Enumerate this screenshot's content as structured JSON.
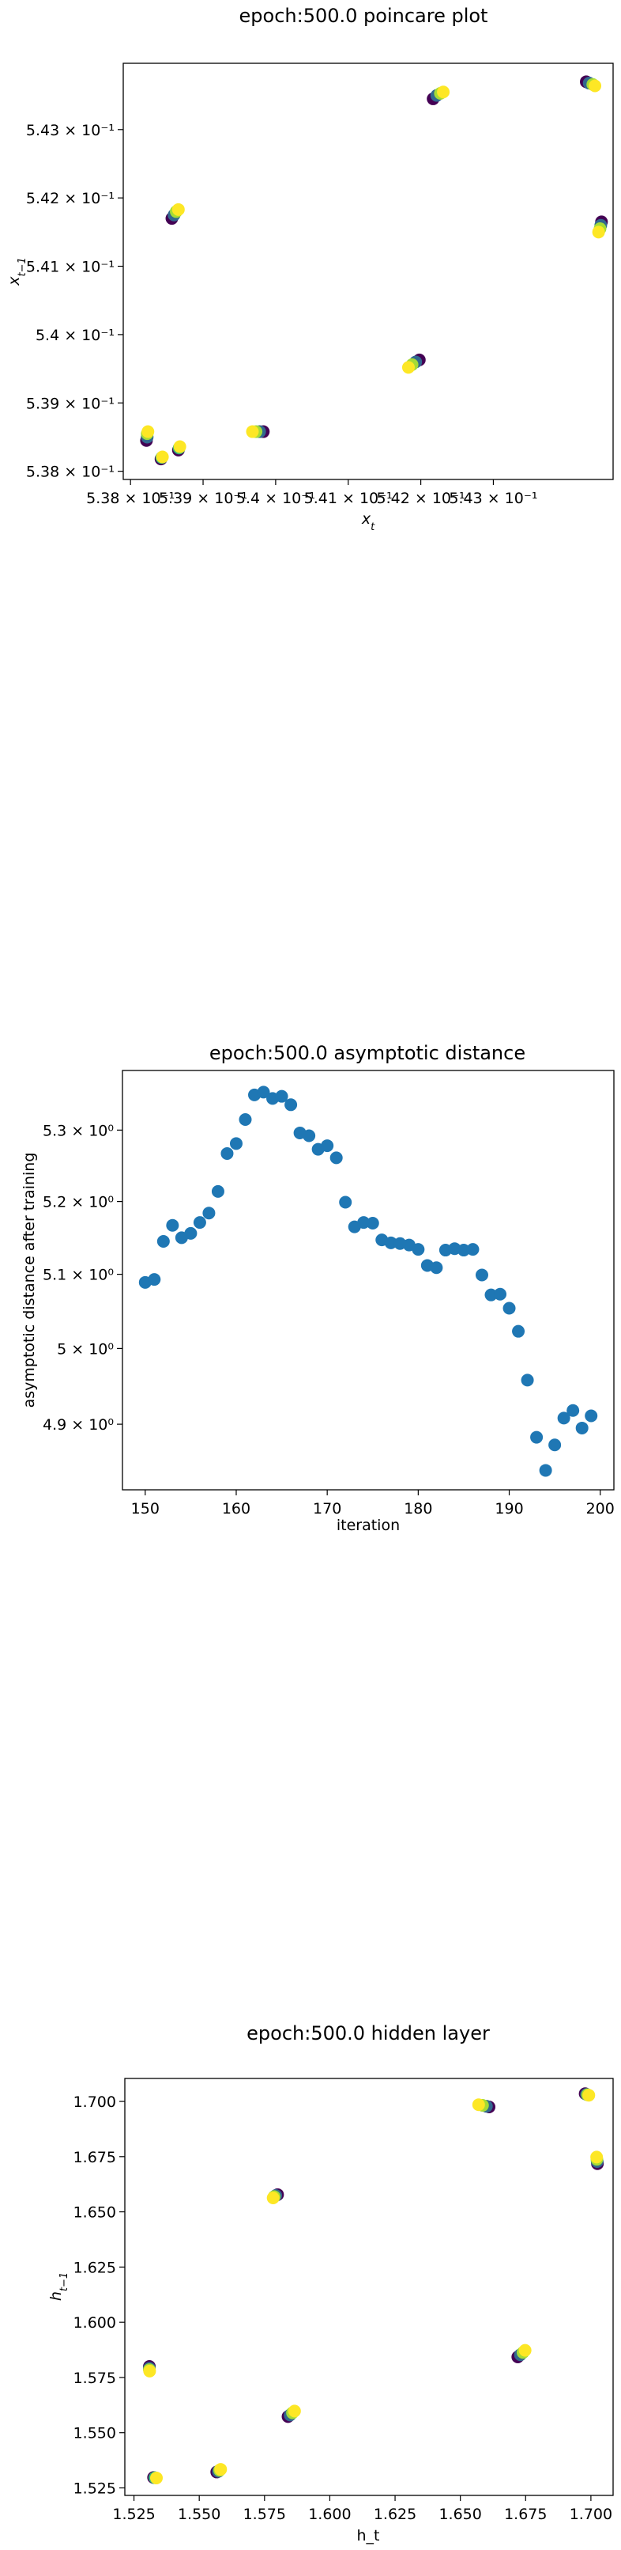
{
  "chart_data": [
    {
      "type": "scatter",
      "title": "epoch:500.0 poincare plot",
      "xlabel": "x_t",
      "ylabel": "x_{t-1}",
      "xlim": [
        0.5379,
        0.54465
      ],
      "ylim": [
        0.53788,
        0.54397
      ],
      "xticks": [
        {
          "value": 0.538,
          "label": "5.38 × 10⁻¹"
        },
        {
          "value": 0.539,
          "label": "5.39 × 10⁻¹"
        },
        {
          "value": 0.54,
          "label": "5.4 × 10⁻¹"
        },
        {
          "value": 0.541,
          "label": "5.41 × 10⁻¹"
        },
        {
          "value": 0.542,
          "label": "5.42 × 10⁻¹"
        },
        {
          "value": 0.543,
          "label": "5.43 × 10⁻¹"
        }
      ],
      "yticks": [
        {
          "value": 0.538,
          "label": "5.38 × 10⁻¹"
        },
        {
          "value": 0.539,
          "label": "5.39 × 10⁻¹"
        },
        {
          "value": 0.54,
          "label": "5.4 × 10⁻¹"
        },
        {
          "value": 0.541,
          "label": "5.41 × 10⁻¹"
        },
        {
          "value": 0.542,
          "label": "5.42 × 10⁻¹"
        },
        {
          "value": 0.543,
          "label": "5.43 × 10⁻¹"
        }
      ],
      "color_scale": "viridis",
      "clusters": [
        {
          "points": [
            [
              0.53822,
              0.53845
            ],
            [
              0.53823,
              0.5385
            ],
            [
              0.53823,
              0.53855
            ],
            [
              0.53824,
              0.53858
            ]
          ]
        },
        {
          "points": [
            [
              0.53842,
              0.53818
            ],
            [
              0.53843,
              0.5382
            ],
            [
              0.53844,
              0.53821
            ]
          ]
        },
        {
          "points": [
            [
              0.53857,
              0.5417
            ],
            [
              0.5386,
              0.54175
            ],
            [
              0.53863,
              0.5418
            ],
            [
              0.53866,
              0.54183
            ]
          ]
        },
        {
          "points": [
            [
              0.53866,
              0.53831
            ],
            [
              0.53867,
              0.53834
            ],
            [
              0.53868,
              0.53836
            ]
          ]
        },
        {
          "points": [
            [
              0.53983,
              0.53858
            ],
            [
              0.53978,
              0.53858
            ],
            [
              0.53973,
              0.53858
            ],
            [
              0.53968,
              0.53858
            ]
          ]
        },
        {
          "points": [
            [
              0.54198,
              0.53963
            ],
            [
              0.54193,
              0.5396
            ],
            [
              0.54188,
              0.53956
            ],
            [
              0.54183,
              0.53952
            ]
          ]
        },
        {
          "points": [
            [
              0.54217,
              0.54345
            ],
            [
              0.54222,
              0.5435
            ],
            [
              0.54227,
              0.54353
            ],
            [
              0.54231,
              0.54355
            ]
          ]
        },
        {
          "points": [
            [
              0.54428,
              0.5437
            ],
            [
              0.54432,
              0.54368
            ],
            [
              0.54437,
              0.54366
            ],
            [
              0.5444,
              0.54364
            ]
          ]
        },
        {
          "points": [
            [
              0.54449,
              0.54165
            ],
            [
              0.54448,
              0.5416
            ],
            [
              0.54447,
              0.54155
            ],
            [
              0.54445,
              0.5415
            ]
          ]
        }
      ]
    },
    {
      "type": "scatter",
      "title": "epoch:500.0 asymptotic distance",
      "xlabel": "iteration",
      "ylabel": "asymptotic distance after training",
      "xlim": [
        147.5,
        201.5
      ],
      "ylim": [
        4.815,
        5.385
      ],
      "log_scale_y": true,
      "color": "#1f77b4",
      "xticks": [
        {
          "value": 150,
          "label": "150"
        },
        {
          "value": 160,
          "label": "160"
        },
        {
          "value": 170,
          "label": "170"
        },
        {
          "value": 180,
          "label": "180"
        },
        {
          "value": 190,
          "label": "190"
        },
        {
          "value": 200,
          "label": "200"
        }
      ],
      "yticks": [
        {
          "value": 4.9,
          "label": "4.9 × 10⁰"
        },
        {
          "value": 5.0,
          "label": "5 × 10⁰"
        },
        {
          "value": 5.1,
          "label": "5.1 × 10⁰"
        },
        {
          "value": 5.2,
          "label": "5.2 × 10⁰"
        },
        {
          "value": 5.3,
          "label": "5.3 × 10⁰"
        }
      ],
      "x": [
        150,
        151,
        152,
        153,
        154,
        155,
        156,
        157,
        158,
        159,
        160,
        161,
        162,
        163,
        164,
        165,
        166,
        167,
        168,
        169,
        170,
        171,
        172,
        173,
        174,
        175,
        176,
        177,
        178,
        179,
        180,
        181,
        182,
        183,
        184,
        185,
        186,
        187,
        188,
        189,
        190,
        191,
        192,
        193,
        194,
        195,
        196,
        197,
        198,
        199
      ],
      "y": [
        5.089,
        5.093,
        5.145,
        5.167,
        5.15,
        5.156,
        5.171,
        5.184,
        5.214,
        5.267,
        5.281,
        5.315,
        5.35,
        5.354,
        5.345,
        5.348,
        5.336,
        5.296,
        5.292,
        5.273,
        5.278,
        5.261,
        5.199,
        5.165,
        5.171,
        5.17,
        5.147,
        5.143,
        5.142,
        5.14,
        5.134,
        5.112,
        5.109,
        5.133,
        5.135,
        5.133,
        5.134,
        5.099,
        5.072,
        5.073,
        5.054,
        5.023,
        4.958,
        4.883,
        4.84,
        4.873,
        4.908,
        4.918,
        4.895,
        4.911
      ]
    },
    {
      "type": "scatter",
      "title": "epoch:500.0 hidden layer",
      "xlabel": "h_t",
      "ylabel": "h_{t-1}",
      "xlim": [
        1.5215,
        1.7085
      ],
      "ylim": [
        1.5216,
        1.7104
      ],
      "color_scale": "viridis",
      "xticks": [
        {
          "value": 1.525,
          "label": "1.525"
        },
        {
          "value": 1.55,
          "label": "1.550"
        },
        {
          "value": 1.575,
          "label": "1.575"
        },
        {
          "value": 1.6,
          "label": "1.600"
        },
        {
          "value": 1.625,
          "label": "1.625"
        },
        {
          "value": 1.65,
          "label": "1.650"
        },
        {
          "value": 1.675,
          "label": "1.675"
        },
        {
          "value": 1.7,
          "label": "1.700"
        }
      ],
      "yticks": [
        {
          "value": 1.525,
          "label": "1.525"
        },
        {
          "value": 1.55,
          "label": "1.550"
        },
        {
          "value": 1.575,
          "label": "1.575"
        },
        {
          "value": 1.6,
          "label": "1.600"
        },
        {
          "value": 1.625,
          "label": "1.625"
        },
        {
          "value": 1.65,
          "label": "1.650"
        },
        {
          "value": 1.675,
          "label": "1.675"
        },
        {
          "value": 1.7,
          "label": "1.700"
        }
      ],
      "clusters": [
        {
          "points": [
            [
              1.5309,
              1.58
            ],
            [
              1.5309,
              1.5792
            ],
            [
              1.5309,
              1.5785
            ],
            [
              1.531,
              1.5779
            ]
          ]
        },
        {
          "points": [
            [
              1.5325,
              1.5297
            ],
            [
              1.533,
              1.5296
            ],
            [
              1.5336,
              1.5295
            ]
          ]
        },
        {
          "points": [
            [
              1.5567,
              1.5322
            ],
            [
              1.5573,
              1.5325
            ],
            [
              1.5578,
              1.533
            ],
            [
              1.5582,
              1.5334
            ]
          ]
        },
        {
          "points": [
            [
              1.58,
              1.6578
            ],
            [
              1.5793,
              1.6574
            ],
            [
              1.5787,
              1.6569
            ],
            [
              1.5783,
              1.6563
            ]
          ]
        },
        {
          "points": [
            [
              1.584,
              1.5573
            ],
            [
              1.5848,
              1.558
            ],
            [
              1.5857,
              1.559
            ],
            [
              1.5865,
              1.5598
            ]
          ]
        },
        {
          "points": [
            [
              1.661,
              1.6975
            ],
            [
              1.66,
              1.6978
            ],
            [
              1.6585,
              1.6982
            ],
            [
              1.657,
              1.6985
            ]
          ]
        },
        {
          "points": [
            [
              1.672,
              1.5843
            ],
            [
              1.673,
              1.5853
            ],
            [
              1.674,
              1.5863
            ],
            [
              1.6748,
              1.5873
            ]
          ]
        },
        {
          "points": [
            [
              1.6978,
              1.7035
            ],
            [
              1.6983,
              1.7032
            ],
            [
              1.6987,
              1.703
            ],
            [
              1.6992,
              1.7028
            ]
          ]
        },
        {
          "points": [
            [
              1.7025,
              1.6718
            ],
            [
              1.7024,
              1.6728
            ],
            [
              1.7023,
              1.6738
            ],
            [
              1.7022,
              1.6748
            ]
          ]
        }
      ]
    }
  ]
}
